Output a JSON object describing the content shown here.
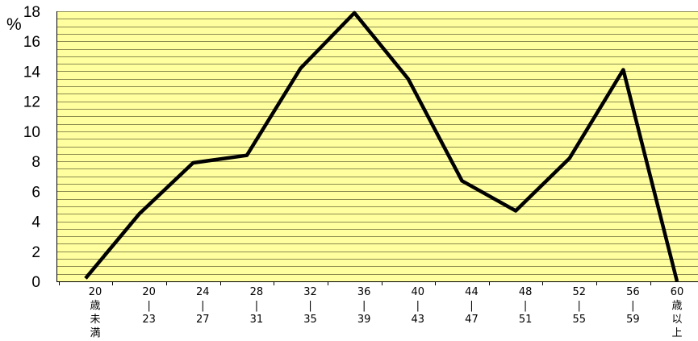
{
  "chart_data": {
    "type": "line",
    "title": "",
    "xlabel": "",
    "ylabel": "%",
    "categories": [
      [
        "20",
        "歳",
        "未",
        "満"
      ],
      [
        "20",
        "|",
        "23"
      ],
      [
        "24",
        "|",
        "27"
      ],
      [
        "28",
        "|",
        "31"
      ],
      [
        "32",
        "|",
        "35"
      ],
      [
        "36",
        "|",
        "39"
      ],
      [
        "40",
        "|",
        "43"
      ],
      [
        "44",
        "|",
        "47"
      ],
      [
        "48",
        "|",
        "51"
      ],
      [
        "52",
        "|",
        "55"
      ],
      [
        "56",
        "|",
        "59"
      ],
      [
        "60",
        "歳",
        "以",
        "上"
      ]
    ],
    "series": [
      {
        "values": [
          0.2,
          4.5,
          7.9,
          8.4,
          14.2,
          17.9,
          13.5,
          6.7,
          4.7,
          8.2,
          14.1,
          0
        ]
      }
    ],
    "ylim": [
      0,
      18
    ],
    "yticks": [
      0,
      2,
      4,
      6,
      8,
      10,
      12,
      14,
      16,
      18
    ],
    "minor_gridlines": true,
    "legend": "none",
    "colors": {
      "plot_background": "#FFFFA0",
      "gridline": "#8C8C50",
      "line": "#000000"
    }
  }
}
